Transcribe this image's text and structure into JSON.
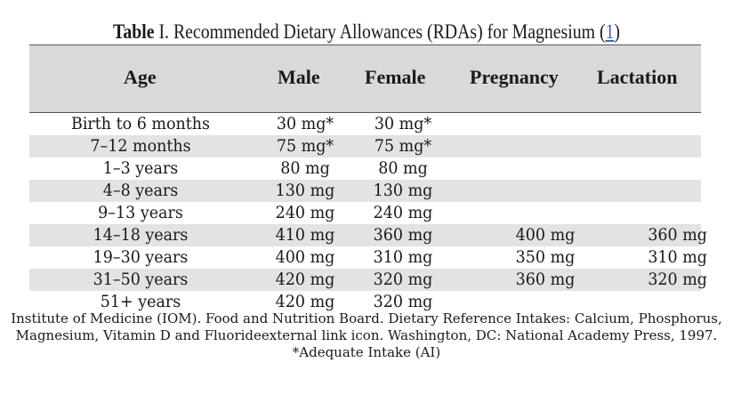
{
  "caption": {
    "label": "Table",
    "title": " I. Recommended Dietary Allowances (RDAs) for Magnesium (",
    "ref": "1",
    "close": ")"
  },
  "columns": [
    "Age",
    "Male",
    "Female",
    "Pregnancy",
    "Lactation"
  ],
  "rows": [
    {
      "age": "Birth to 6 months",
      "male": "30 mg*",
      "female": "30 mg*",
      "pregnancy": "",
      "lactation": ""
    },
    {
      "age": "7–12 months",
      "male": "75 mg*",
      "female": "75 mg*",
      "pregnancy": "",
      "lactation": ""
    },
    {
      "age": "1–3 years",
      "male": "80 mg",
      "female": "80 mg",
      "pregnancy": "",
      "lactation": ""
    },
    {
      "age": "4–8 years",
      "male": "130 mg",
      "female": "130 mg",
      "pregnancy": "",
      "lactation": ""
    },
    {
      "age": "9–13 years",
      "male": "240 mg",
      "female": "240 mg",
      "pregnancy": "",
      "lactation": ""
    },
    {
      "age": "14–18 years",
      "male": "410 mg",
      "female": "360 mg",
      "pregnancy": "400 mg",
      "lactation": "360 mg"
    },
    {
      "age": "19–30 years",
      "male": "400 mg",
      "female": "310 mg",
      "pregnancy": "350 mg",
      "lactation": "310 mg"
    },
    {
      "age": "31–50 years",
      "male": "420 mg",
      "female": "320 mg",
      "pregnancy": "360 mg",
      "lactation": "320 mg"
    },
    {
      "age": "51+ years",
      "male": "420 mg",
      "female": "320 mg",
      "pregnancy": "",
      "lactation": ""
    }
  ],
  "footnote": {
    "line1": "Institute of Medicine (IOM). Food and Nutrition Board. Dietary Reference Intakes: Calcium, Phosphorus,",
    "line2": "Magnesium, Vitamin D and Fluorideexternal link icon. Washington, DC: National Academy Press, 1997.",
    "line3": "*Adequate Intake (AI)"
  },
  "colors": {
    "header_bg": "#d9d9d9",
    "stripe_bg": "#e3e3e3",
    "link": "#3b63b8"
  }
}
